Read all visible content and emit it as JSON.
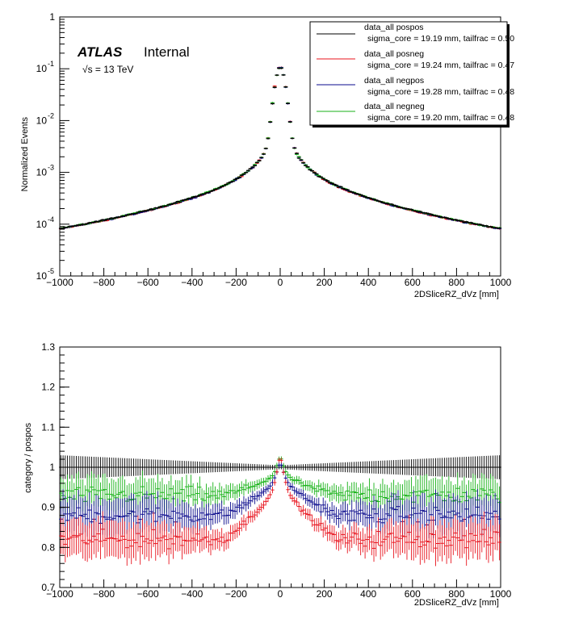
{
  "chart_data": [
    {
      "type": "line",
      "panel": "top",
      "title": "",
      "xlabel": "2DSliceRZ_dVz [mm]",
      "ylabel": "Normalized Events",
      "xlim": [
        -1000,
        1000
      ],
      "ylim": [
        1e-05,
        1
      ],
      "yscale": "log",
      "xticks": [
        "−1000",
        "−800",
        "−600",
        "−400",
        "−200",
        "0",
        "200",
        "400",
        "600",
        "800",
        "1000"
      ],
      "yticks": [
        {
          "base": "10",
          "exp": "-5"
        },
        {
          "base": "10",
          "exp": "-4"
        },
        {
          "base": "10",
          "exp": "-3"
        },
        {
          "base": "10",
          "exp": "-2"
        },
        {
          "base": "10",
          "exp": "-1"
        },
        {
          "base": "1",
          "exp": ""
        }
      ],
      "labels": {
        "atlas": "ATLAS",
        "internal": "Internal",
        "energy": "√s = 13 TeV"
      },
      "legend_position": "top-right",
      "series": [
        {
          "name": "data_all pospos",
          "sub": "sigma_core = 19.19 mm, tailfrac = 0.50",
          "color": "#000000",
          "peak": 0.115,
          "tail_at_1000": 0.000125
        },
        {
          "name": "data_all posneg",
          "sub": "sigma_core = 19.24 mm, tailfrac = 0.47",
          "color": "#e8141e",
          "peak": 0.118,
          "tail_at_1000": 0.00011
        },
        {
          "name": "data_all negpos",
          "sub": "sigma_core = 19.28 mm, tailfrac = 0.48",
          "color": "#0a0a8c",
          "peak": 0.116,
          "tail_at_1000": 0.000118
        },
        {
          "name": "data_all negneg",
          "sub": "sigma_core = 19.20 mm, tailfrac = 0.48",
          "color": "#17b217",
          "peak": 0.117,
          "tail_at_1000": 0.000122
        }
      ]
    },
    {
      "type": "scatter",
      "panel": "bottom",
      "title": "",
      "xlabel": "2DSliceRZ_dVz [mm]",
      "ylabel": "category / pospos",
      "xlim": [
        -1000,
        1000
      ],
      "ylim": [
        0.7,
        1.3
      ],
      "xticks": [
        "−1000",
        "−800",
        "−600",
        "−400",
        "−200",
        "0",
        "200",
        "400",
        "600",
        "800",
        "1000"
      ],
      "yticks": [
        "0.7",
        "0.8",
        "0.9",
        "1",
        "1.1",
        "1.2",
        "1.3"
      ],
      "series": [
        {
          "name": "pospos",
          "color": "#000000",
          "ratio_at_edge": 1.0,
          "ratio_at_center": 1.0,
          "err_at_edge": 0.03
        },
        {
          "name": "posneg",
          "color": "#e8141e",
          "ratio_at_edge": 0.82,
          "ratio_at_center": 1.04,
          "err_at_edge": 0.045
        },
        {
          "name": "negpos",
          "color": "#0a0a8c",
          "ratio_at_edge": 0.88,
          "ratio_at_center": 1.02,
          "err_at_edge": 0.045
        },
        {
          "name": "negneg",
          "color": "#17b217",
          "ratio_at_edge": 0.93,
          "ratio_at_center": 1.03,
          "err_at_edge": 0.04
        }
      ]
    }
  ]
}
